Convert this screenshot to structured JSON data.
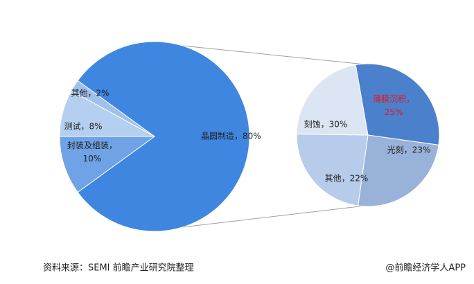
{
  "chart_data": [
    {
      "type": "pie",
      "values": [
        80,
        10,
        8,
        2
      ],
      "value_labels": [
        "晶圆制造，80%",
        "封装及组装，10%",
        "测试，8%",
        "其他，2%"
      ],
      "colors": [
        "#3f86e1",
        "#6fa3e6",
        "#b5cff1",
        "#9fc0ec"
      ]
    },
    {
      "type": "pie",
      "values": [
        30,
        25,
        23,
        22
      ],
      "value_labels": [
        "刻蚀，30%",
        "薄膜沉积，25%",
        "光刻，23%",
        "其他，22%"
      ],
      "colors": [
        "#4b80cc",
        "#98b2da",
        "#b7cbea",
        "#dbe5f3"
      ],
      "label_colors": [
        "#222222",
        "#e8141c",
        "#222222",
        "#222222"
      ]
    }
  ],
  "footer": {
    "source": "资料来源：SEMI 前瞻产业研究院整理",
    "credit": "@前瞻经济学人APP"
  }
}
